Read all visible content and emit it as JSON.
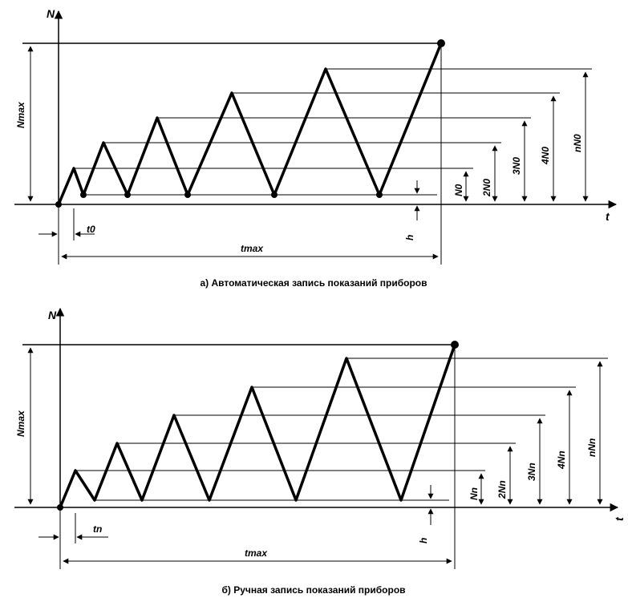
{
  "diagram_a": {
    "caption": "а) Автоматическая запись показаний приборов",
    "y_axis_letter": "N",
    "x_axis_letter": "t",
    "n_max_label": "Nmax",
    "t_max_label": "tmax",
    "t_step_label": "t0",
    "step_labels": [
      "N0",
      "2N0",
      "3N0",
      "4N0",
      "nN0"
    ],
    "h_label": "h"
  },
  "diagram_b": {
    "caption": "б) Ручная запись показаний приборов",
    "y_axis_letter": "N",
    "x_axis_letter": "t",
    "n_max_label": "Nmax",
    "t_max_label": "tmax",
    "t_step_label": "tn",
    "step_labels": [
      "Nn",
      "2Nn",
      "3Nn",
      "4Nn",
      "nNn"
    ],
    "h_label": "h"
  },
  "style": {
    "line_color": "#000000",
    "background": "#ffffff"
  }
}
